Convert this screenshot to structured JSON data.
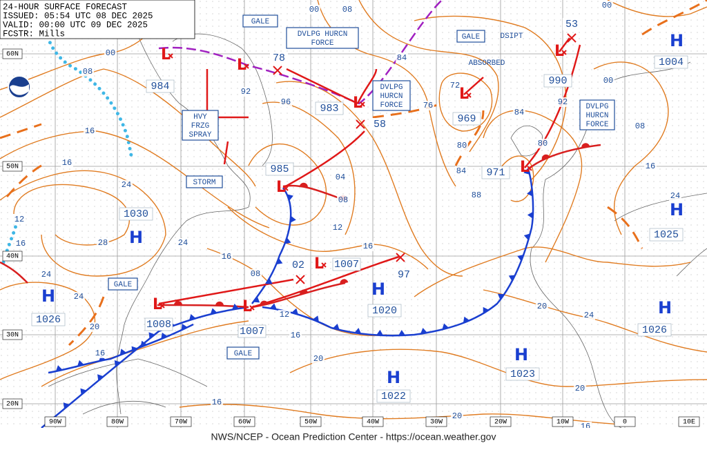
{
  "header": {
    "lines": [
      "24-HOUR SURFACE FORECAST",
      "ISSUED: 05:54 UTC 08 DEC 2025",
      "VALID:  00:00 UTC 09 DEC 2025",
      "FCSTR:  Mills"
    ]
  },
  "lat_labels": [
    "60N",
    "50N",
    "40N",
    "30N",
    "20N"
  ],
  "lon_labels": [
    "90W",
    "80W",
    "70W",
    "60W",
    "50W",
    "40W",
    "30W",
    "20W",
    "10W",
    "0",
    "10E"
  ],
  "high_symbol": "H",
  "low_symbol": "L",
  "highs": [
    "1030",
    "1026",
    "1020",
    "1023",
    "1022",
    "1025",
    "1026",
    "1004"
  ],
  "lows": [
    "984",
    "985",
    "983",
    "1008",
    "1007",
    "1007",
    "971",
    "990",
    "969"
  ],
  "x_marks": [
    "78",
    "58",
    "02",
    "97",
    "53"
  ],
  "boxes": [
    {
      "lines": [
        "GALE"
      ]
    },
    {
      "lines": [
        "DVLPG HURCN",
        "FORCE"
      ]
    },
    {
      "lines": [
        "GALE"
      ]
    },
    {
      "lines": [
        "DVLPG",
        "HURCN",
        "FORCE"
      ]
    },
    {
      "lines": [
        "DVLPG",
        "HURCN",
        "FORCE"
      ]
    },
    {
      "lines": [
        "HVY",
        "FRZG",
        "SPRAY"
      ]
    },
    {
      "lines": [
        "STORM"
      ]
    },
    {
      "lines": [
        "GALE"
      ]
    },
    {
      "lines": [
        "GALE"
      ]
    }
  ],
  "notes": [
    "DSIPT",
    "ABSORBED"
  ],
  "isobar_labels": [
    "00",
    "08",
    "16",
    "16",
    "24",
    "12",
    "16",
    "28",
    "24",
    "24",
    "24",
    "20",
    "16",
    "16",
    "08",
    "12",
    "16",
    "12",
    "08",
    "04",
    "16",
    "96",
    "92",
    "72",
    "76",
    "84",
    "80",
    "84",
    "88",
    "84",
    "92",
    "80",
    "00",
    "08",
    "16",
    "24",
    "20",
    "24",
    "20",
    "20",
    "20",
    "16",
    "16",
    "00",
    "08",
    "00"
  ],
  "footer": "NWS/NCEP - Ocean Prediction Center - https://ocean.weather.gov"
}
